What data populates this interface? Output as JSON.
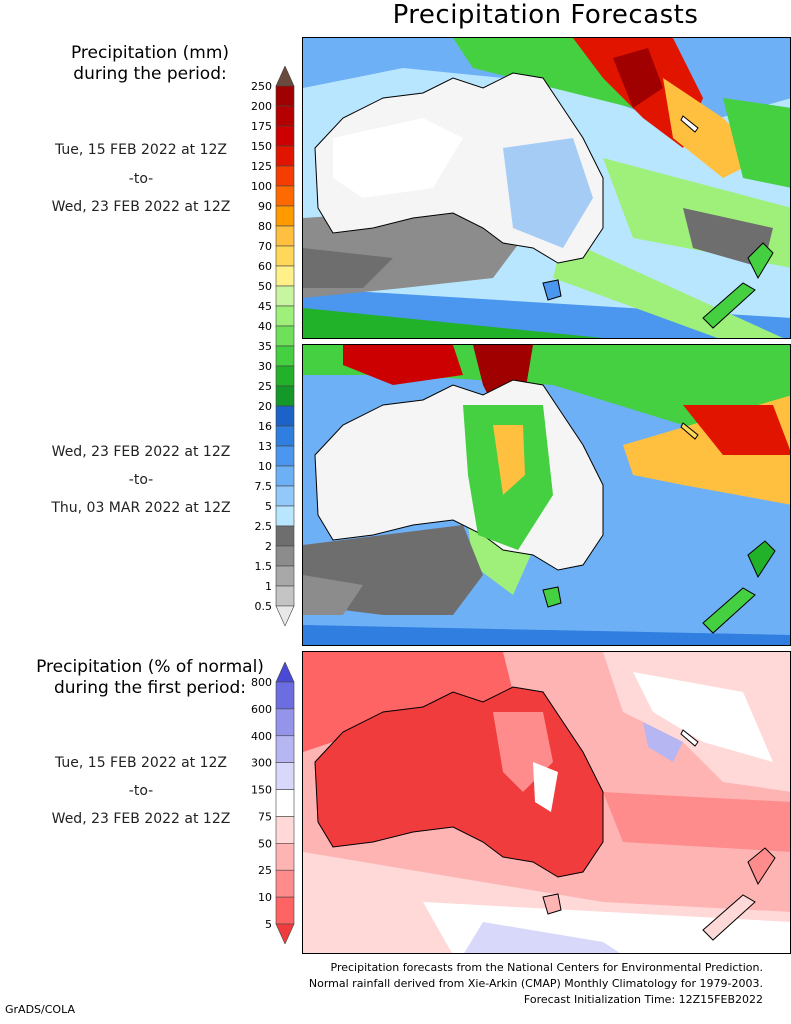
{
  "title": "Precipitation Forecasts",
  "section1": {
    "heading_line1": "Precipitation (mm)",
    "heading_line2": "during the period:"
  },
  "period1": {
    "start": "Tue, 15 FEB 2022 at 12Z",
    "sep": "-to-",
    "end": "Wed, 23 FEB 2022 at 12Z"
  },
  "period2": {
    "start": "Wed, 23 FEB 2022 at 12Z",
    "sep": "-to-",
    "end": "Thu, 03 MAR 2022 at 12Z"
  },
  "section3": {
    "heading_line1": "Precipitation (% of normal)",
    "heading_line2": "during the first period:"
  },
  "period3": {
    "start": "Tue, 15 FEB 2022 at 12Z",
    "sep": "-to-",
    "end": "Wed, 23 FEB 2022 at 12Z"
  },
  "mm_scale": {
    "labels": [
      "250",
      "200",
      "175",
      "150",
      "125",
      "100",
      "90",
      "80",
      "70",
      "60",
      "50",
      "45",
      "40",
      "35",
      "30",
      "25",
      "20",
      "16",
      "13",
      "10",
      "7.5",
      "5",
      "2.5",
      "2",
      "1.5",
      "1",
      "0.5"
    ],
    "colors": [
      "#6b4a3e",
      "#a00000",
      "#b40000",
      "#cc0000",
      "#e11400",
      "#f53d00",
      "#ff6a00",
      "#ff9a00",
      "#ffbf3f",
      "#ffd85a",
      "#fff08a",
      "#c8f5a0",
      "#9ef07a",
      "#6fe05a",
      "#44d040",
      "#22b22a",
      "#14982a",
      "#1b63c9",
      "#2f7ee0",
      "#4b96ee",
      "#6eb0f5",
      "#92c8fa",
      "#b8e6ff",
      "#6e6e6e",
      "#8c8c8c",
      "#a8a8a8",
      "#c4c4c4",
      "#e8e8e8"
    ]
  },
  "pct_scale": {
    "labels": [
      "800",
      "600",
      "400",
      "300",
      "150",
      "75",
      "50",
      "25",
      "10",
      "5"
    ],
    "colors": [
      "#4a4ad6",
      "#6d6de2",
      "#9494ea",
      "#b6b6f2",
      "#d8d8fa",
      "#ffffff",
      "#ffd8d8",
      "#ffb4b4",
      "#ff8c8c",
      "#ff6464",
      "#f03c3c"
    ]
  },
  "footer": {
    "line1": "Precipitation forecasts from the National Centers for Environmental Prediction.",
    "line2": "Normal rainfall derived from Xie-Arkin (CMAP) Monthly Climatology for 1979-2003.",
    "line3": "Forecast Initialization Time: 12Z15FEB2022"
  },
  "credit": "GrADS/COLA"
}
